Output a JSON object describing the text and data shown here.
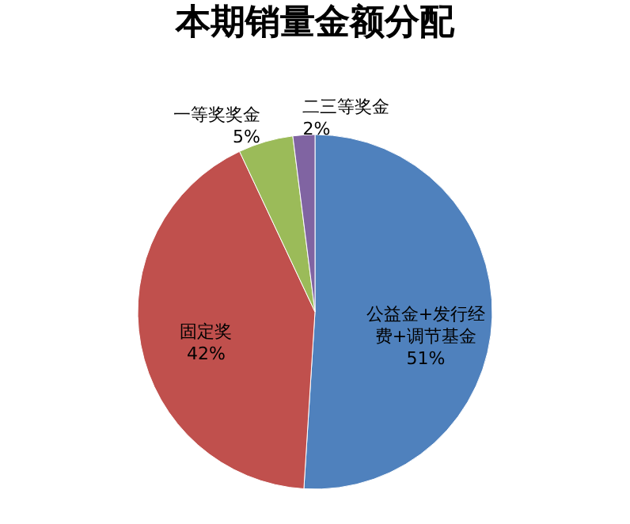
{
  "chart_data": {
    "type": "pie",
    "title": "本期销量金额分配",
    "categories": [
      "公益金+发行经费+调节基金",
      "固定奖",
      "一等奖奖金",
      "二三等奖金"
    ],
    "values": [
      51,
      42,
      5,
      2
    ],
    "colors": [
      "#4f81bd",
      "#c0504d",
      "#9bbb59",
      "#8064a2"
    ],
    "value_labels": [
      "51%",
      "42%",
      "5%",
      "2%"
    ],
    "legend": false
  }
}
